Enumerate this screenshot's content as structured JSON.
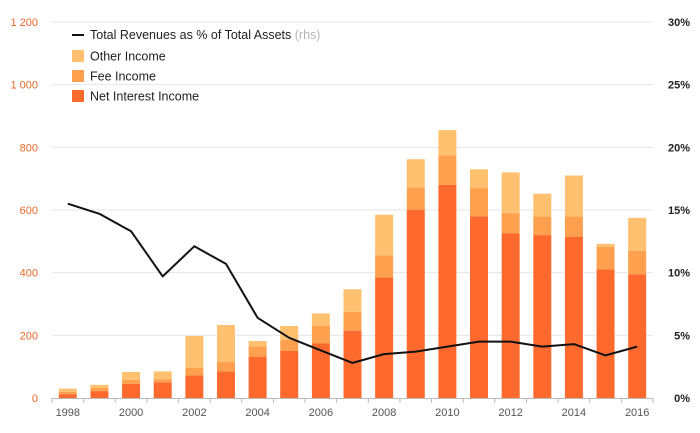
{
  "chart_data": {
    "type": "bar",
    "stacked": true,
    "years": [
      1998,
      1999,
      2000,
      2001,
      2002,
      2003,
      2004,
      2005,
      2006,
      2007,
      2008,
      2009,
      2010,
      2011,
      2012,
      2013,
      2014,
      2015,
      2016
    ],
    "x_tick_labels": [
      "1998",
      "2000",
      "2002",
      "2004",
      "2006",
      "2008",
      "2010",
      "2012",
      "2014",
      "2016"
    ],
    "left_axis": {
      "ylim": [
        0,
        1200
      ],
      "ticks": [
        0,
        200,
        400,
        600,
        800,
        1000,
        1200
      ],
      "tick_labels": [
        "0",
        "200",
        "400",
        "600",
        "800",
        "1 000",
        "1 200"
      ]
    },
    "right_axis": {
      "ylim": [
        0,
        30
      ],
      "ticks": [
        0,
        5,
        10,
        15,
        20,
        25,
        30
      ],
      "tick_labels": [
        "0%",
        "5%",
        "10%",
        "15%",
        "20%",
        "25%",
        "30%"
      ]
    },
    "grid": true,
    "legend_position": "top-left",
    "series": [
      {
        "name": "Net Interest Income",
        "color": "#fe6a2d",
        "values": [
          12,
          22,
          45,
          50,
          72,
          85,
          132,
          150,
          175,
          215,
          385,
          600,
          680,
          580,
          525,
          520,
          515,
          410,
          395
        ]
      },
      {
        "name": "Fee Income",
        "color": "#fea04d",
        "values": [
          8,
          10,
          13,
          10,
          24,
          30,
          33,
          35,
          55,
          60,
          70,
          72,
          95,
          90,
          65,
          60,
          65,
          72,
          75
        ]
      },
      {
        "name": "Other Income",
        "color": "#ffc170",
        "values": [
          10,
          10,
          25,
          25,
          102,
          118,
          17,
          45,
          40,
          72,
          130,
          90,
          80,
          60,
          130,
          72,
          130,
          10,
          105
        ]
      }
    ],
    "line": {
      "name": "Total Revenues as % of Total Assets",
      "name_note": "(rhs)",
      "axis": "right",
      "color": "#111111",
      "values": [
        15.5,
        14.7,
        13.3,
        9.7,
        12.1,
        10.7,
        6.4,
        4.8,
        3.8,
        2.8,
        3.5,
        3.7,
        4.1,
        4.5,
        4.5,
        4.1,
        4.3,
        3.4,
        4.1
      ]
    }
  }
}
